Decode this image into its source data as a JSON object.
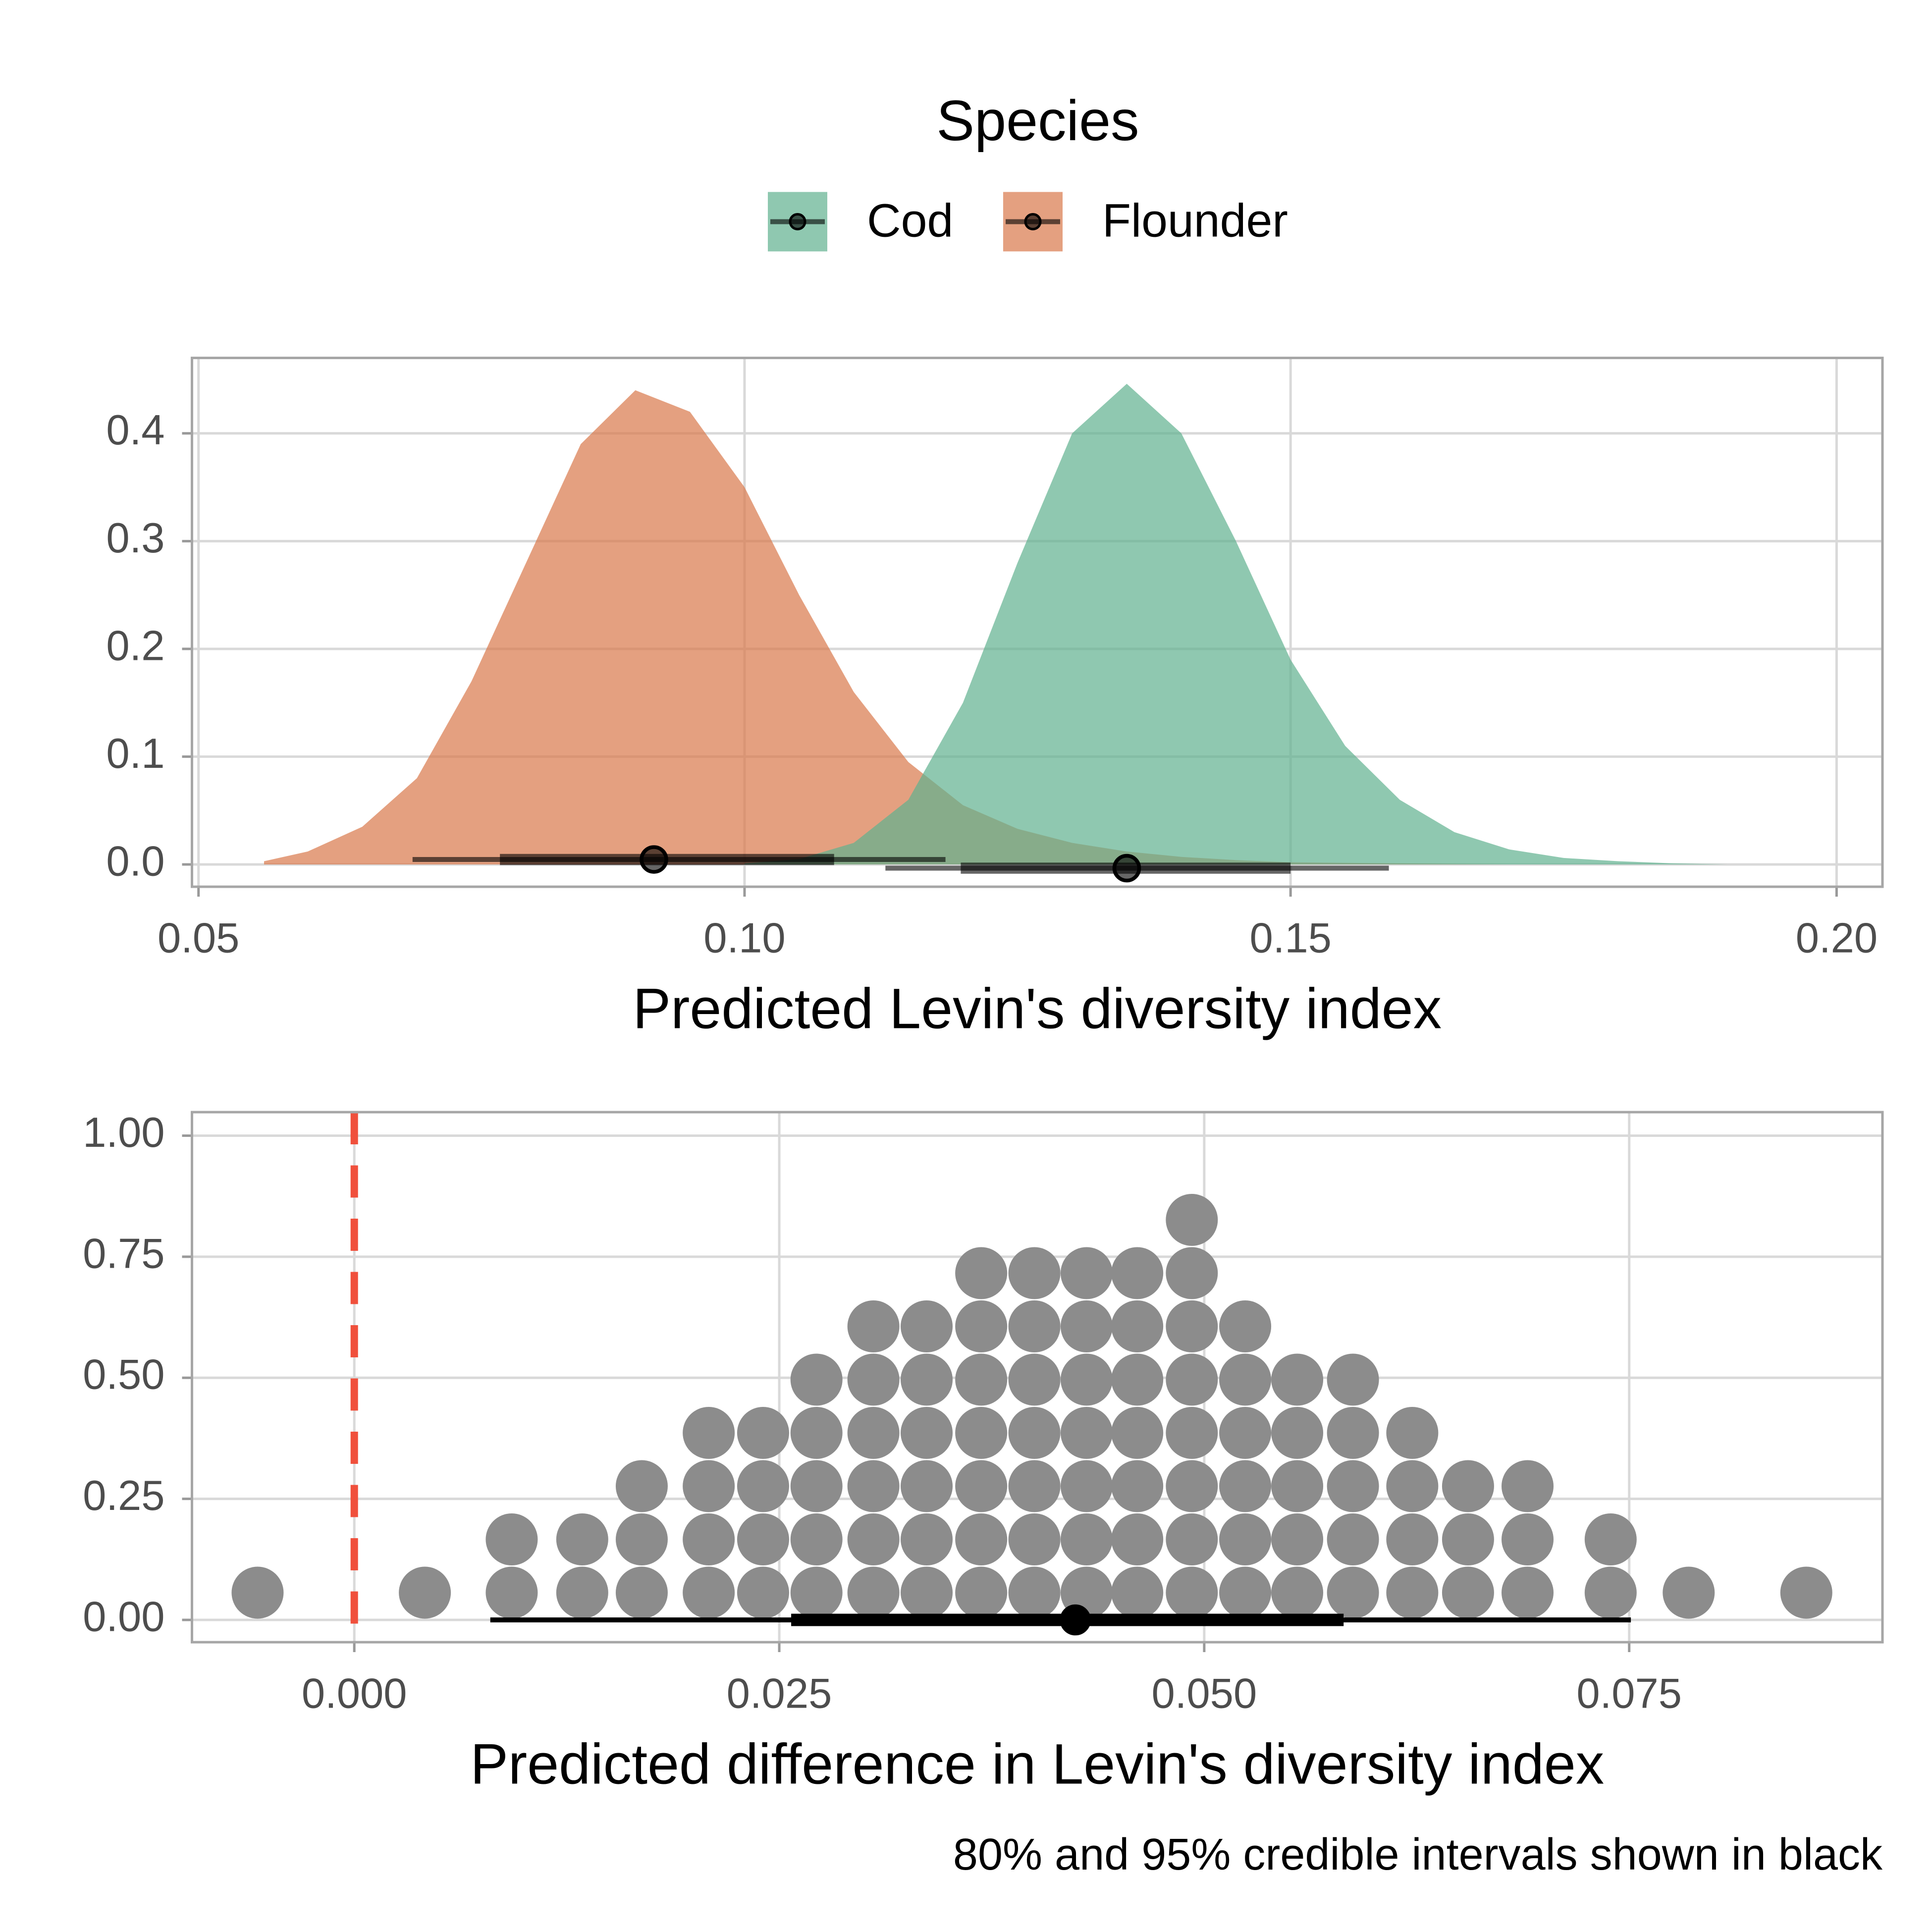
{
  "chart_data": [
    {
      "type": "density",
      "x_label": "Predicted Levin's diversity index",
      "legend_title": "Species",
      "legend_position": "top",
      "xlim": [
        0.0494,
        0.2042
      ],
      "ylim": [
        -0.0207,
        0.47
      ],
      "xticks": [
        0.05,
        {
          "value": 0.1,
          "label": "0.10"
        },
        0.15,
        {
          "value": 0.2,
          "label": "0.20"
        }
      ],
      "yticks": [
        {
          "value": 0,
          "label": "0.0"
        },
        0.1,
        0.2,
        0.3,
        0.4
      ],
      "grid": true,
      "series": [
        {
          "name": "Flounder",
          "color": "#d9774a",
          "x": [
            0.056,
            0.06,
            0.065,
            0.07,
            0.075,
            0.08,
            0.085,
            0.09,
            0.095,
            0.1,
            0.105,
            0.11,
            0.115,
            0.12,
            0.125,
            0.13,
            0.135,
            0.14,
            0.145,
            0.15,
            0.16,
            0.17
          ],
          "values": [
            0.003,
            0.012,
            0.035,
            0.08,
            0.17,
            0.28,
            0.39,
            0.44,
            0.42,
            0.35,
            0.25,
            0.16,
            0.095,
            0.055,
            0.033,
            0.02,
            0.012,
            0.007,
            0.004,
            0.002,
            0.001,
            0
          ],
          "median": 0.0917,
          "ci80": [
            0.0776,
            0.1082
          ],
          "ci95": [
            0.0696,
            0.1184
          ]
        },
        {
          "name": "Cod",
          "color": "#5fb08f",
          "x": [
            0.1,
            0.105,
            0.11,
            0.115,
            0.12,
            0.125,
            0.13,
            0.135,
            0.14,
            0.145,
            0.15,
            0.155,
            0.16,
            0.165,
            0.17,
            0.175,
            0.18,
            0.185,
            0.19
          ],
          "values": [
            0.001,
            0.005,
            0.02,
            0.06,
            0.15,
            0.28,
            0.4,
            0.446,
            0.4,
            0.3,
            0.19,
            0.11,
            0.06,
            0.03,
            0.014,
            0.006,
            0.003,
            0.001,
            0
          ],
          "median": 0.135,
          "ci80": [
            0.1198,
            0.15
          ],
          "ci95": [
            0.1129,
            0.159
          ]
        }
      ]
    },
    {
      "type": "dotplot",
      "x_label": "Predicted difference in Levin's diversity index",
      "caption": "80% and 95% credible intervals shown in black",
      "xlim": [
        -0.00955,
        0.0899
      ],
      "ylim": [
        -0.046,
        1.0486
      ],
      "xticks": [
        {
          "value": 0,
          "label": "0.000"
        },
        0.025,
        {
          "value": 0.05,
          "label": "0.050"
        },
        0.075
      ],
      "yticks": [
        {
          "value": 0,
          "label": "0.00"
        },
        0.25,
        {
          "value": 0.5,
          "label": "0.50"
        },
        0.75,
        {
          "value": 1,
          "label": "1.00"
        }
      ],
      "grid": true,
      "color": "#8c8c8c",
      "reference_line": 0,
      "reference_color": "#f0503c",
      "bin_centers": [
        -0.00569,
        0.00415,
        0.00926,
        0.01341,
        0.01691,
        0.02085,
        0.02405,
        0.02719,
        0.03054,
        0.03367,
        0.03688,
        0.04001,
        0.04308,
        0.04606,
        0.04927,
        0.05241,
        0.05547,
        0.05875,
        0.06224,
        0.06552,
        0.06902,
        0.07391,
        0.0785,
        0.08542
      ],
      "counts": [
        1,
        1,
        2,
        2,
        3,
        4,
        4,
        5,
        6,
        6,
        7,
        7,
        7,
        7,
        8,
        6,
        5,
        5,
        4,
        3,
        3,
        2,
        1,
        1
      ],
      "median": 0.04242,
      "ci80": [
        0.0257,
        0.0582
      ],
      "ci95": [
        0.008,
        0.0751
      ]
    }
  ]
}
